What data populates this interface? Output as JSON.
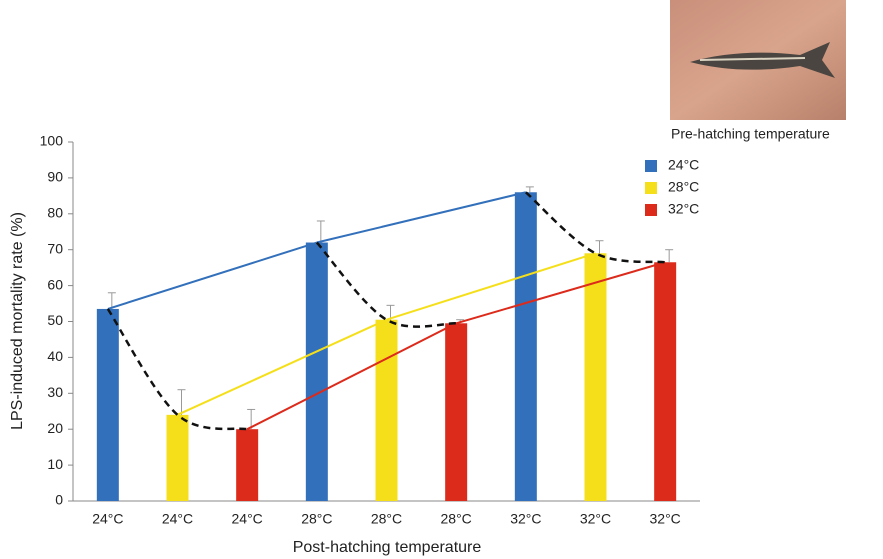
{
  "chart_data": {
    "type": "bar",
    "x_label": "Post-hatching temperature",
    "y_label": "LPS-induced mortality rate (%)",
    "legend_title": "Pre-hatching temperature",
    "legend_position": "upper right",
    "categories": [
      "24°C",
      "24°C",
      "24°C",
      "28°C",
      "28°C",
      "28°C",
      "32°C",
      "32°C",
      "32°C"
    ],
    "series": [
      {
        "name": "24°C",
        "color": "#3370bb",
        "values": [
          53.5,
          null,
          null,
          72,
          null,
          null,
          86,
          null,
          null
        ],
        "errors": [
          4.5,
          null,
          null,
          6,
          null,
          null,
          1.5,
          null,
          null
        ]
      },
      {
        "name": "28°C",
        "color": "#f5df1a",
        "values": [
          null,
          24,
          null,
          null,
          50.5,
          null,
          null,
          69,
          null
        ],
        "errors": [
          null,
          7,
          null,
          null,
          4,
          null,
          null,
          3.5,
          null
        ]
      },
      {
        "name": "32°C",
        "color": "#dc2a1b",
        "values": [
          null,
          null,
          20,
          null,
          null,
          49.5,
          null,
          null,
          66.5
        ],
        "errors": [
          null,
          null,
          5.5,
          null,
          null,
          1,
          null,
          null,
          3.5
        ]
      }
    ],
    "ylim": [
      0,
      100
    ],
    "yticks": [
      0,
      10,
      20,
      30,
      40,
      50,
      60,
      70,
      80,
      90,
      100
    ]
  }
}
